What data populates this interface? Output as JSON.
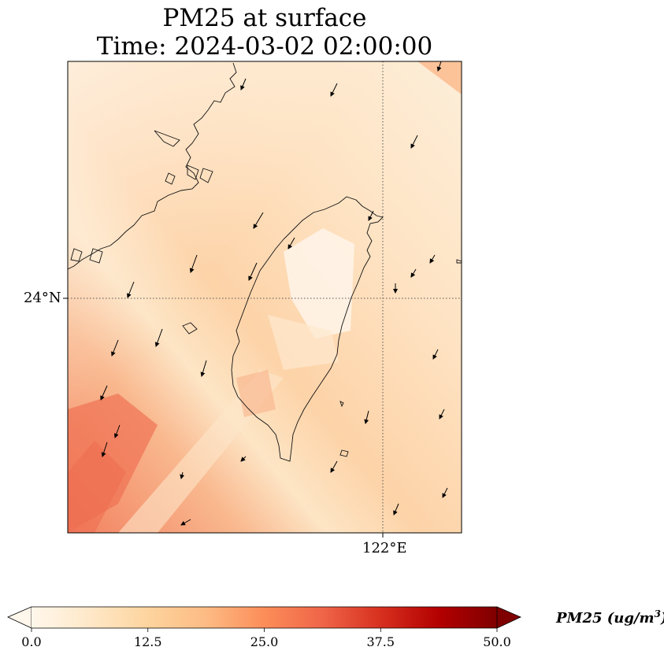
{
  "title_line1": "PM25 at surface",
  "title_line2": "Time: 2024-03-02 02:00:00",
  "axes": {
    "lat_label": "24°N",
    "lon_label": "122°E"
  },
  "colorbar": {
    "label_main": "PM25 (ug/m",
    "label_sup": "3",
    "label_end": ")",
    "min": 0.0,
    "max": 50.0,
    "extend": "both",
    "colormap": "OrRd",
    "ticks": [
      "0.0",
      "12.5",
      "25.0",
      "37.5",
      "50.0"
    ],
    "colors": [
      "#fff7ec",
      "#fee8c8",
      "#fdd49e",
      "#fdbb84",
      "#fc8d59",
      "#ef6548",
      "#d7301f",
      "#b30000",
      "#7f0000"
    ]
  },
  "map": {
    "gridlines": "dotted",
    "features": [
      "coastline",
      "taiwan-island",
      "fujian-coast"
    ],
    "wind_vectors": "shown"
  }
}
